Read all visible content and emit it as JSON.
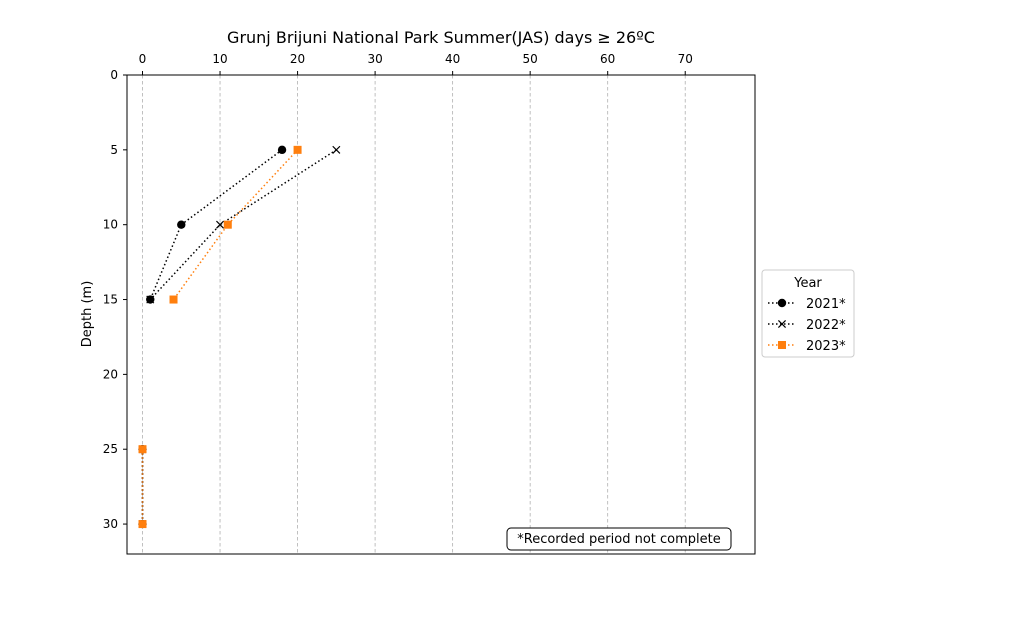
{
  "chart_data": {
    "type": "line",
    "title": "Grunj Brijuni National Park Summer(JAS) days ≥ 26ºC",
    "xlabel": "",
    "ylabel": "Depth (m)",
    "xlim": [
      -2,
      79
    ],
    "ylim": [
      32,
      0
    ],
    "y_inverted": true,
    "x_axis_position": "top",
    "x_ticks": [
      0,
      10,
      20,
      30,
      40,
      50,
      60,
      70
    ],
    "y_ticks": [
      0,
      5,
      10,
      15,
      20,
      25,
      30
    ],
    "grid": "vertical dashed",
    "legend_title": "Year",
    "legend_position": "outside right",
    "annotation": "*Recorded period not complete",
    "series": [
      {
        "name": "2021*",
        "color": "#000000",
        "marker": "circle",
        "segments": [
          [
            {
              "x": 18,
              "y": 5
            },
            {
              "x": 5,
              "y": 10
            },
            {
              "x": 1,
              "y": 15
            }
          ],
          [
            {
              "x": 0,
              "y": 25
            },
            {
              "x": 0,
              "y": 30
            }
          ]
        ]
      },
      {
        "name": "2022*",
        "color": "#000000",
        "marker": "x",
        "segments": [
          [
            {
              "x": 25,
              "y": 5
            },
            {
              "x": 10,
              "y": 10
            },
            {
              "x": 1,
              "y": 15
            }
          ],
          [
            {
              "x": 0,
              "y": 25
            },
            {
              "x": 0,
              "y": 30
            }
          ]
        ]
      },
      {
        "name": "2023*",
        "color": "#ff7f0e",
        "marker": "square",
        "segments": [
          [
            {
              "x": 20,
              "y": 5
            },
            {
              "x": 11,
              "y": 10
            },
            {
              "x": 4,
              "y": 15
            }
          ],
          [
            {
              "x": 0,
              "y": 25
            },
            {
              "x": 0,
              "y": 30
            }
          ]
        ]
      }
    ]
  }
}
